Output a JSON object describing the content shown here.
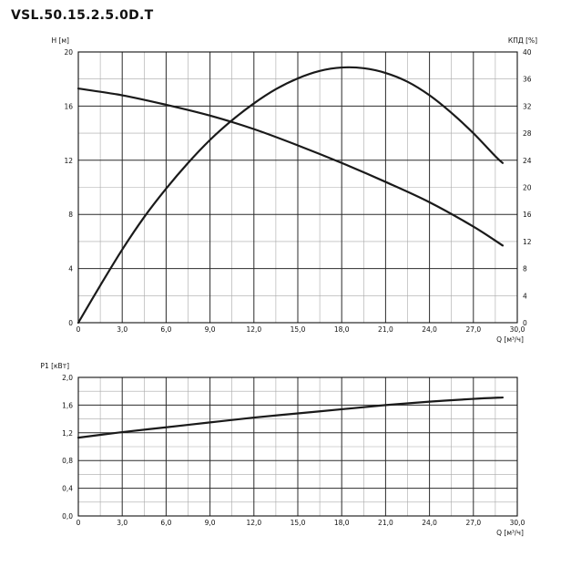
{
  "title": "VSL.50.15.2.5.0D.T",
  "colors": {
    "curve": "#1a1a1a",
    "grid_major": "#2b2b2b",
    "grid_minor": "#a8a8a8"
  },
  "chart_data": [
    {
      "type": "line",
      "xlabel": "Q [м³/ч]",
      "ylabel": "H [м]",
      "y2label": "КПД [%]",
      "xlim": [
        0,
        30
      ],
      "ylim": [
        0,
        20
      ],
      "y2lim": [
        0,
        40
      ],
      "x_ticks": [
        "0",
        "3,0",
        "6,0",
        "9,0",
        "12,0",
        "15,0",
        "18,0",
        "21,0",
        "24,0",
        "27,0",
        "30,0"
      ],
      "y_ticks": [
        "0",
        "4",
        "8",
        "12",
        "16",
        "20"
      ],
      "y2_ticks": [
        "0",
        "4",
        "8",
        "12",
        "16",
        "20",
        "24",
        "28",
        "32",
        "36",
        "40"
      ],
      "grid": true,
      "series": [
        {
          "axis": "left",
          "x": [
            0,
            3,
            6,
            9,
            12,
            15,
            18,
            21,
            24,
            27,
            29
          ],
          "y": [
            17.3,
            16.8,
            16.1,
            15.3,
            14.3,
            13.1,
            11.8,
            10.4,
            8.9,
            7.1,
            5.7
          ]
        },
        {
          "axis": "right",
          "x": [
            0,
            1.5,
            3,
            4.5,
            6,
            7.5,
            9,
            10.5,
            12,
            13.5,
            15,
            16.5,
            18,
            19.5,
            21,
            22.5,
            24,
            25.5,
            27,
            28.5,
            29
          ],
          "y": [
            0,
            5.5,
            10.8,
            15.6,
            19.8,
            23.6,
            27,
            29.9,
            32.4,
            34.5,
            36.1,
            37.2,
            37.7,
            37.6,
            36.9,
            35.6,
            33.6,
            31,
            28,
            24.6,
            23.6
          ]
        }
      ]
    },
    {
      "type": "line",
      "xlabel": "Q [м³/ч]",
      "ylabel": "P1 [кВт]",
      "xlim": [
        0,
        30
      ],
      "ylim": [
        0,
        2.0
      ],
      "x_ticks": [
        "0",
        "3,0",
        "6,0",
        "9,0",
        "12,0",
        "15,0",
        "18,0",
        "21,0",
        "24,0",
        "27,0",
        "30,0"
      ],
      "y_ticks": [
        "0,0",
        "0,4",
        "0,8",
        "1,2",
        "1,6",
        "2,0"
      ],
      "grid": true,
      "series": [
        {
          "axis": "left",
          "x": [
            0,
            3,
            6,
            9,
            12,
            15,
            18,
            21,
            24,
            27,
            29
          ],
          "y": [
            1.13,
            1.21,
            1.28,
            1.35,
            1.42,
            1.48,
            1.54,
            1.6,
            1.65,
            1.69,
            1.71
          ]
        }
      ]
    }
  ]
}
